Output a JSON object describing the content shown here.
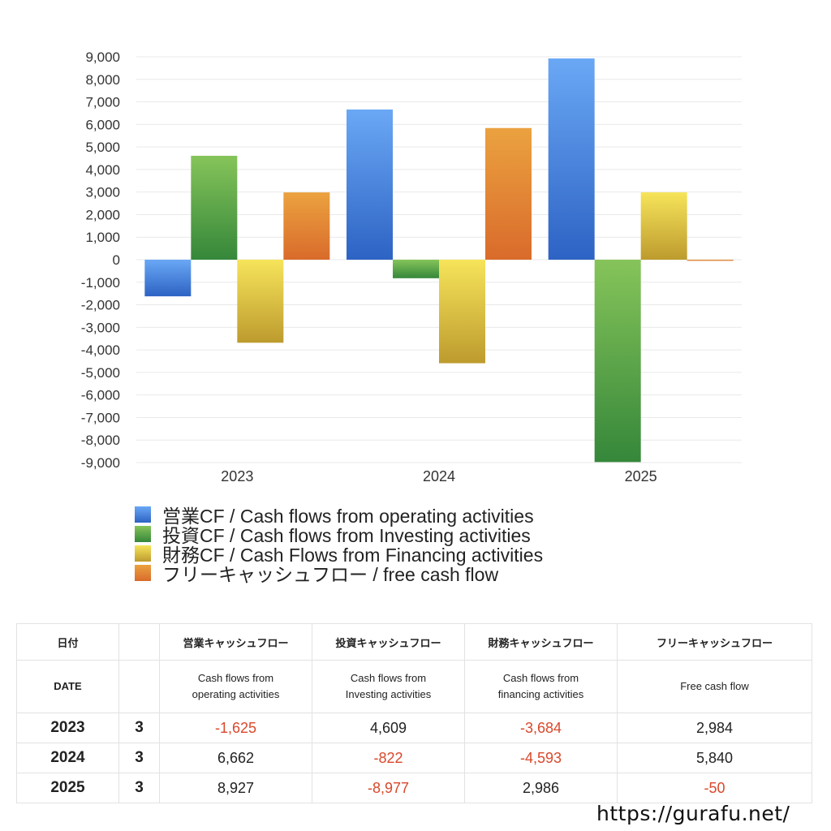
{
  "chart_data": {
    "type": "bar",
    "categories": [
      "2023",
      "2024",
      "2025"
    ],
    "series": [
      {
        "name": "営業CF / Cash flows from operating activities",
        "values": [
          -1625,
          6662,
          8927
        ],
        "color_top": "#6aa8f5",
        "color_bottom": "#2d63c4"
      },
      {
        "name": "投資CF / Cash flows from Investing activities",
        "values": [
          4609,
          -822,
          -8977
        ],
        "color_top": "#86c45a",
        "color_bottom": "#35873a"
      },
      {
        "name": "財務CF / Cash Flows from Financing activities",
        "values": [
          -3684,
          -4593,
          2986
        ],
        "color_top": "#f6e45a",
        "color_bottom": "#bd9b2e"
      },
      {
        "name": "フリーキャッシュフロー / free cash flow",
        "values": [
          2984,
          5840,
          -50
        ],
        "color_top": "#eba240",
        "color_bottom": "#d96b2b"
      }
    ],
    "ylim": [
      -9000,
      9000
    ],
    "yticks": [
      9000,
      8000,
      7000,
      6000,
      5000,
      4000,
      3000,
      2000,
      1000,
      0,
      -1000,
      -2000,
      -3000,
      -4000,
      -5000,
      -6000,
      -7000,
      -8000,
      -9000
    ],
    "ytick_labels": [
      "9,000",
      "8,000",
      "7,000",
      "6,000",
      "5,000",
      "4,000",
      "3,000",
      "2,000",
      "1,000",
      "0",
      "-1,000",
      "-2,000",
      "-3,000",
      "-4,000",
      "-5,000",
      "-6,000",
      "-7,000",
      "-8,000",
      "-9,000"
    ],
    "grid": true,
    "legend_position": "bottom-left"
  },
  "table": {
    "header_jp": [
      "日付",
      "",
      "営業キャッシュフロー",
      "投資キャッシュフロー",
      "財務キャッシュフロー",
      "フリーキャッシュフロー"
    ],
    "header_en": {
      "date": "DATE",
      "operating": [
        "Cash flows from",
        "operating activities"
      ],
      "investing": [
        "Cash flows from",
        "Investing activities"
      ],
      "financing": [
        "Cash flows from",
        "financing activities"
      ],
      "free": [
        "Free cash flow"
      ]
    },
    "rows": [
      {
        "year": "2023",
        "month": "3",
        "cells": [
          {
            "text": "-1,625",
            "neg": true
          },
          {
            "text": "4,609",
            "neg": false
          },
          {
            "text": "-3,684",
            "neg": true
          },
          {
            "text": "2,984",
            "neg": false
          }
        ]
      },
      {
        "year": "2024",
        "month": "3",
        "cells": [
          {
            "text": "6,662",
            "neg": false
          },
          {
            "text": "-822",
            "neg": true
          },
          {
            "text": "-4,593",
            "neg": true
          },
          {
            "text": "5,840",
            "neg": false
          }
        ]
      },
      {
        "year": "2025",
        "month": "3",
        "cells": [
          {
            "text": "8,927",
            "neg": false
          },
          {
            "text": "-8,977",
            "neg": true
          },
          {
            "text": "2,986",
            "neg": false
          },
          {
            "text": "-50",
            "neg": true
          }
        ]
      }
    ]
  },
  "site_url": "https://gurafu.net/"
}
